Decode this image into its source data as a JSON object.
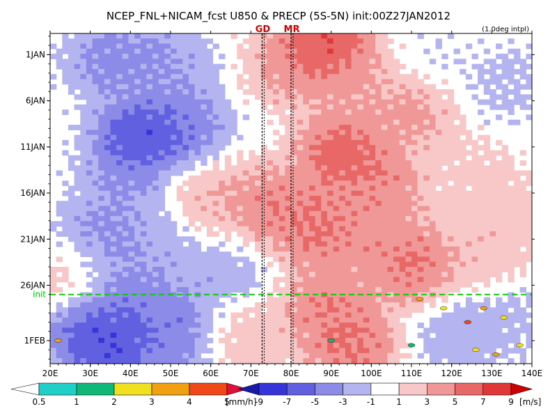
{
  "chart_data": {
    "type": "heatmap",
    "title": "NCEP_FNL+NICAM_fcst U850 & PRECP (5S-5N) init:00Z27JAN2012",
    "note": "(1.0deg intpl)",
    "x_axis": {
      "ticks": [
        "20E",
        "30E",
        "40E",
        "50E",
        "60E",
        "70E",
        "80E",
        "90E",
        "100E",
        "110E",
        "120E",
        "130E",
        "140E"
      ],
      "tick_values": [
        20,
        30,
        40,
        50,
        60,
        70,
        80,
        90,
        100,
        110,
        120,
        130,
        140
      ],
      "range": [
        20,
        140
      ]
    },
    "y_axis": {
      "ticks": [
        "1JAN",
        "6JAN",
        "11JAN",
        "16JAN",
        "21JAN",
        "26JAN",
        "1FEB"
      ],
      "tick_values": [
        0,
        5,
        10,
        15,
        20,
        25,
        31
      ],
      "range": [
        -2.3,
        33.5
      ],
      "inverted": true
    },
    "init_line": {
      "label": "init",
      "y": 26,
      "color": "#00cc00"
    },
    "markers": [
      {
        "label": "GD",
        "x": 72.8
      },
      {
        "label": "MR",
        "x": 80
      }
    ],
    "precip_scale": {
      "unit": "[mm/h]",
      "ticks": [
        "0.5",
        "1",
        "2",
        "3",
        "4",
        "5"
      ],
      "colors": [
        "#ffffff",
        "#20d0c8",
        "#10b878",
        "#f0e020",
        "#f0a010",
        "#f04818",
        "#e0103a"
      ]
    },
    "wind_scale": {
      "unit": "[m/s]",
      "ticks": [
        "-9",
        "-7",
        "-5",
        "-3",
        "-1",
        "1",
        "3",
        "5",
        "7",
        "9"
      ],
      "colors": [
        "#1a1aa8",
        "#3535d8",
        "#6060e0",
        "#8c8ce8",
        "#b4b4f0",
        "#ffffff",
        "#f8c8c8",
        "#f09898",
        "#e86868",
        "#e03838",
        "#d00000"
      ]
    },
    "u850_centers": [
      {
        "x": 88,
        "y": -1.5,
        "value": 10
      },
      {
        "x": 80,
        "y": 1.0,
        "value": 5
      },
      {
        "x": 95,
        "y": 2.5,
        "value": 4
      },
      {
        "x": 35,
        "y": 0.0,
        "value": -5
      },
      {
        "x": 48,
        "y": 1.0,
        "value": -4
      },
      {
        "x": 42,
        "y": 9.0,
        "value": -9
      },
      {
        "x": 52,
        "y": 8.0,
        "value": -6
      },
      {
        "x": 38,
        "y": 14.0,
        "value": -4
      },
      {
        "x": 32,
        "y": 20.0,
        "value": -5
      },
      {
        "x": 46,
        "y": 20.0,
        "value": -3
      },
      {
        "x": 40,
        "y": 26.0,
        "value": -5
      },
      {
        "x": 30,
        "y": 29.0,
        "value": -7
      },
      {
        "x": 34,
        "y": 31.0,
        "value": -9
      },
      {
        "x": 50,
        "y": 29.5,
        "value": -6
      },
      {
        "x": 62,
        "y": 24.0,
        "value": -3
      },
      {
        "x": 74,
        "y": 16.0,
        "value": 6
      },
      {
        "x": 92,
        "y": 10.5,
        "value": 8
      },
      {
        "x": 86,
        "y": 18.5,
        "value": 7
      },
      {
        "x": 102,
        "y": 14.0,
        "value": 6
      },
      {
        "x": 110,
        "y": 22.5,
        "value": 7
      },
      {
        "x": 98,
        "y": 19.5,
        "value": 5
      },
      {
        "x": 88,
        "y": 27.0,
        "value": 6
      },
      {
        "x": 94,
        "y": 31.0,
        "value": 7
      },
      {
        "x": 110,
        "y": 6.0,
        "value": 5
      },
      {
        "x": 122,
        "y": 12.0,
        "value": 2
      },
      {
        "x": 128,
        "y": 22.0,
        "value": 3
      },
      {
        "x": 122,
        "y": 30.0,
        "value": -3
      },
      {
        "x": 134,
        "y": 28.0,
        "value": -2
      },
      {
        "x": 132,
        "y": 3.0,
        "value": -2
      },
      {
        "x": 116,
        "y": 0.0,
        "value": -1
      },
      {
        "x": 130,
        "y": 16.0,
        "value": 3
      },
      {
        "x": 58,
        "y": 15.0,
        "value": 4
      },
      {
        "x": 68,
        "y": 30.0,
        "value": 3
      },
      {
        "x": 24,
        "y": 24.0,
        "value": 3
      }
    ],
    "precip_patches": [
      {
        "x": 112,
        "y": 26.5,
        "value": 3
      },
      {
        "x": 118,
        "y": 27.5,
        "value": 2
      },
      {
        "x": 124,
        "y": 29.0,
        "value": 4
      },
      {
        "x": 128,
        "y": 27.5,
        "value": 3
      },
      {
        "x": 133,
        "y": 28.5,
        "value": 2
      },
      {
        "x": 126,
        "y": 32.0,
        "value": 2
      },
      {
        "x": 131,
        "y": 32.5,
        "value": 3
      },
      {
        "x": 137,
        "y": 31.5,
        "value": 2
      },
      {
        "x": 90,
        "y": 31.0,
        "value": 1
      },
      {
        "x": 22,
        "y": 31.0,
        "value": 3
      },
      {
        "x": 110,
        "y": 31.5,
        "value": 1
      }
    ]
  }
}
